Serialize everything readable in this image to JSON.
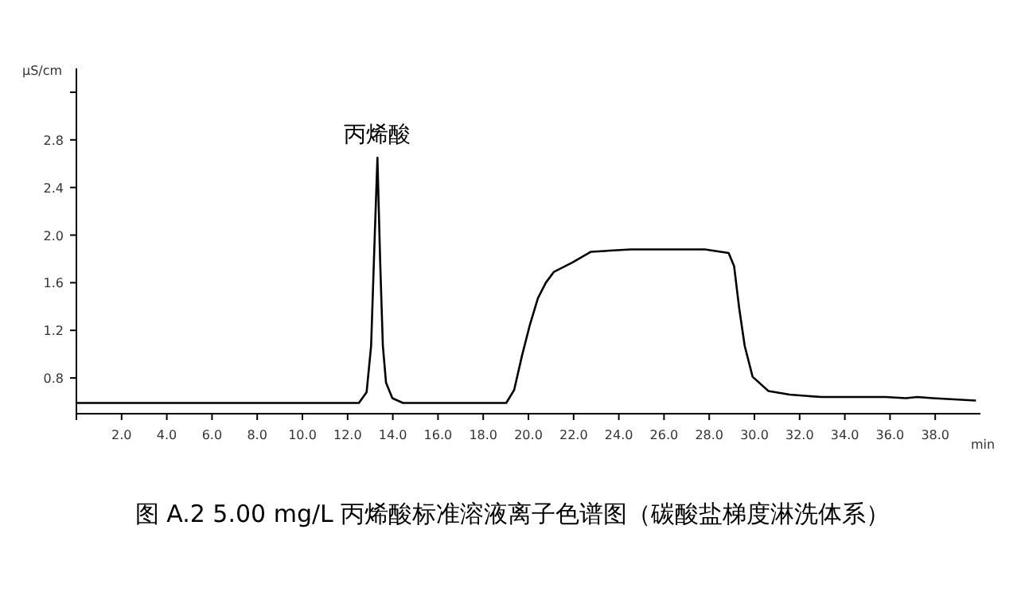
{
  "chart_data": {
    "type": "line",
    "title": "图 A.2  5.00 mg/L 丙烯酸标准溶液离子色谱图（碳酸盐梯度淋洗体系）",
    "xlabel": "min",
    "ylabel": "µS/cm",
    "annotations": [
      {
        "text": "丙烯酸",
        "x": 13.32,
        "y": 2.65
      }
    ],
    "series": [
      {
        "color": "#000000",
        "x": [
          0,
          12.5,
          12.84,
          13.04,
          13.2,
          13.32,
          13.44,
          13.56,
          13.7,
          13.98,
          14.45,
          19.02,
          19.37,
          19.72,
          20.07,
          20.42,
          20.77,
          21.12,
          21.95,
          22.77,
          24.53,
          27.81,
          28.86,
          29.1,
          29.33,
          29.57,
          29.92,
          30.62,
          31.56,
          32.97,
          35.8,
          36.7,
          37.2,
          37.9,
          39.8
        ],
        "values": [
          0.59,
          0.59,
          0.68,
          1.07,
          1.99,
          2.65,
          1.78,
          1.07,
          0.76,
          0.63,
          0.59,
          0.59,
          0.7,
          0.99,
          1.25,
          1.47,
          1.6,
          1.69,
          1.77,
          1.86,
          1.88,
          1.88,
          1.85,
          1.74,
          1.38,
          1.07,
          0.81,
          0.69,
          0.66,
          0.64,
          0.64,
          0.63,
          0.64,
          0.63,
          0.61
        ]
      }
    ],
    "xlim": [
      0,
      40
    ],
    "ylim": [
      0.5,
      3.4
    ],
    "xticks": [
      {
        "value": 0,
        "label": null
      },
      {
        "value": 2,
        "label": "2.0"
      },
      {
        "value": 4,
        "label": "4.0"
      },
      {
        "value": 6,
        "label": "6.0"
      },
      {
        "value": 8,
        "label": "8.0"
      },
      {
        "value": 10,
        "label": "10.0"
      },
      {
        "value": 12,
        "label": "12.0"
      },
      {
        "value": 14,
        "label": "14.0"
      },
      {
        "value": 16,
        "label": "16.0"
      },
      {
        "value": 18,
        "label": "18.0"
      },
      {
        "value": 20,
        "label": "20.0"
      },
      {
        "value": 22,
        "label": "22.0"
      },
      {
        "value": 24,
        "label": "24.0"
      },
      {
        "value": 26,
        "label": "26.0"
      },
      {
        "value": 28,
        "label": "28.0"
      },
      {
        "value": 30,
        "label": "30.0"
      },
      {
        "value": 32,
        "label": "32.0"
      },
      {
        "value": 34,
        "label": "34.0"
      },
      {
        "value": 36,
        "label": "36.0"
      },
      {
        "value": 38,
        "label": "38.0"
      }
    ],
    "yticks": [
      0.8,
      1.2,
      1.6,
      {
        "value": 2.0,
        "label": "2.0"
      },
      2.4,
      2.8,
      {
        "value": 3.2,
        "label": null
      }
    ],
    "grid": false,
    "marker": "none",
    "line_style": "solid"
  }
}
